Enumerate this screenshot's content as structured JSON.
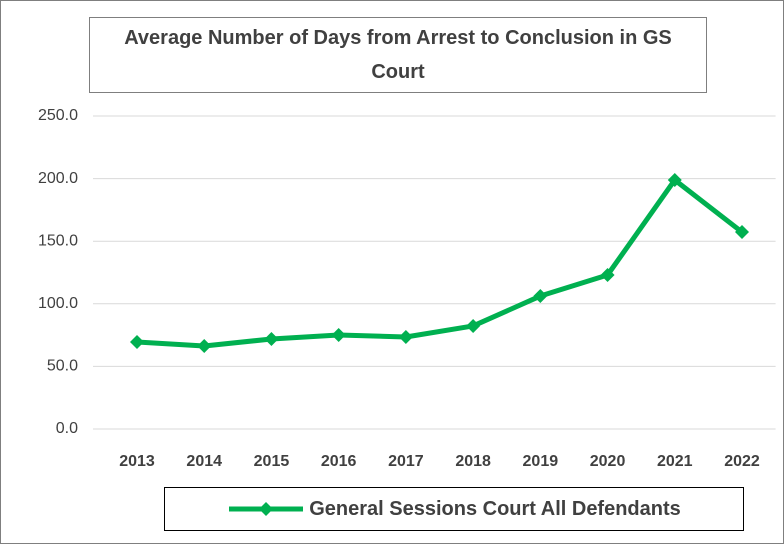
{
  "chart_data": {
    "type": "line",
    "title": "Average Number of Days from Arrest to Conclusion in GS Court",
    "categories": [
      "2013",
      "2014",
      "2015",
      "2016",
      "2017",
      "2018",
      "2019",
      "2020",
      "2021",
      "2022"
    ],
    "series": [
      {
        "name": "General Sessions Court All Defendants",
        "color": "#00b050",
        "values": [
          69.5,
          66.3,
          71.9,
          75.1,
          73.5,
          82.3,
          106.2,
          123.0,
          198.9,
          157.3
        ]
      }
    ],
    "ylim": [
      0,
      250
    ],
    "yticks": [
      {
        "value": 0,
        "label": "0.0"
      },
      {
        "value": 50,
        "label": "50.0"
      },
      {
        "value": 100,
        "label": "100.0"
      },
      {
        "value": 150,
        "label": "150.0"
      },
      {
        "value": 200,
        "label": "200.0"
      },
      {
        "value": 250,
        "label": "250.0"
      }
    ],
    "grid": true
  }
}
